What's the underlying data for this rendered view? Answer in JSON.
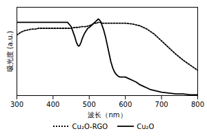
{
  "chart_data": {
    "type": "line",
    "xlabel": "波长（nm）",
    "ylabel": "吸光度 (a.u.)",
    "xlim": [
      300,
      800
    ],
    "ylim": [
      0,
      1.05
    ],
    "xticks": [
      300,
      400,
      500,
      600,
      700,
      800
    ],
    "tick_labels": "x",
    "grid": false,
    "legend": "lower center",
    "series": [
      {
        "name": "Cu₂O-RGO",
        "color": "black",
        "line_style": "dotted",
        "x": [
          300,
          310,
          320,
          330,
          340,
          350,
          360,
          370,
          380,
          390,
          400,
          410,
          420,
          430,
          440,
          450,
          460,
          470,
          480,
          490,
          500,
          505,
          510,
          515,
          520,
          525,
          530,
          535,
          540,
          550,
          560,
          570,
          580,
          590,
          600,
          620,
          640,
          660,
          680,
          700,
          720,
          740,
          760,
          780,
          800
        ],
        "values": [
          0.72,
          0.75,
          0.77,
          0.78,
          0.79,
          0.79,
          0.8,
          0.8,
          0.8,
          0.8,
          0.8,
          0.8,
          0.8,
          0.8,
          0.8,
          0.8,
          0.81,
          0.81,
          0.82,
          0.82,
          0.83,
          0.84,
          0.85,
          0.86,
          0.86,
          0.87,
          0.87,
          0.86,
          0.86,
          0.86,
          0.86,
          0.86,
          0.86,
          0.86,
          0.86,
          0.85,
          0.83,
          0.79,
          0.73,
          0.65,
          0.57,
          0.49,
          0.42,
          0.36,
          0.3
        ]
      },
      {
        "name": "Cu₂O",
        "color": "black",
        "line_style": "solid",
        "x": [
          300,
          310,
          320,
          330,
          340,
          350,
          360,
          370,
          380,
          390,
          400,
          410,
          420,
          430,
          440,
          450,
          455,
          460,
          462,
          464,
          466,
          468,
          470,
          472,
          474,
          476,
          478,
          480,
          483,
          486,
          490,
          493,
          496,
          500,
          503,
          505,
          508,
          510,
          513,
          515,
          518,
          520,
          523,
          525,
          528,
          530,
          533,
          535,
          540,
          545,
          550,
          555,
          560,
          565,
          570,
          575,
          580,
          585,
          590,
          595,
          600,
          610,
          620,
          630,
          640,
          650,
          660,
          670,
          680,
          700,
          720,
          740,
          760,
          780,
          800
        ],
        "values": [
          0.87,
          0.87,
          0.87,
          0.87,
          0.87,
          0.87,
          0.87,
          0.87,
          0.87,
          0.87,
          0.87,
          0.87,
          0.87,
          0.87,
          0.87,
          0.82,
          0.76,
          0.7,
          0.67,
          0.64,
          0.62,
          0.6,
          0.59,
          0.59,
          0.6,
          0.62,
          0.64,
          0.67,
          0.7,
          0.73,
          0.76,
          0.78,
          0.8,
          0.81,
          0.82,
          0.83,
          0.84,
          0.85,
          0.86,
          0.87,
          0.88,
          0.89,
          0.9,
          0.91,
          0.9,
          0.89,
          0.87,
          0.84,
          0.78,
          0.7,
          0.6,
          0.5,
          0.4,
          0.33,
          0.28,
          0.25,
          0.23,
          0.22,
          0.22,
          0.22,
          0.22,
          0.2,
          0.18,
          0.16,
          0.13,
          0.11,
          0.09,
          0.07,
          0.06,
          0.04,
          0.03,
          0.02,
          0.02,
          0.01,
          0.01
        ]
      }
    ]
  }
}
